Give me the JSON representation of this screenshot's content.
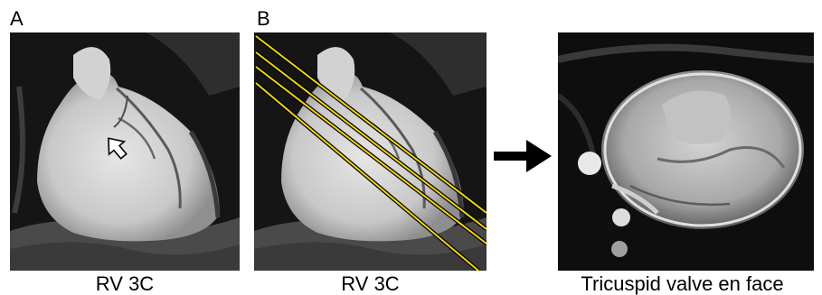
{
  "panels": [
    {
      "letter": "A",
      "caption": "RV 3C"
    },
    {
      "letter": "B",
      "caption": "RV 3C"
    },
    {
      "letter": "",
      "caption": "Tricuspid valve en face"
    }
  ],
  "colors": {
    "slice_lines": "#f2d600",
    "background": "#ffffff",
    "arrow": "#000000"
  },
  "icons": {
    "pointer_arrow": "white-arrow-icon",
    "transition_arrow": "right-arrow-icon"
  }
}
